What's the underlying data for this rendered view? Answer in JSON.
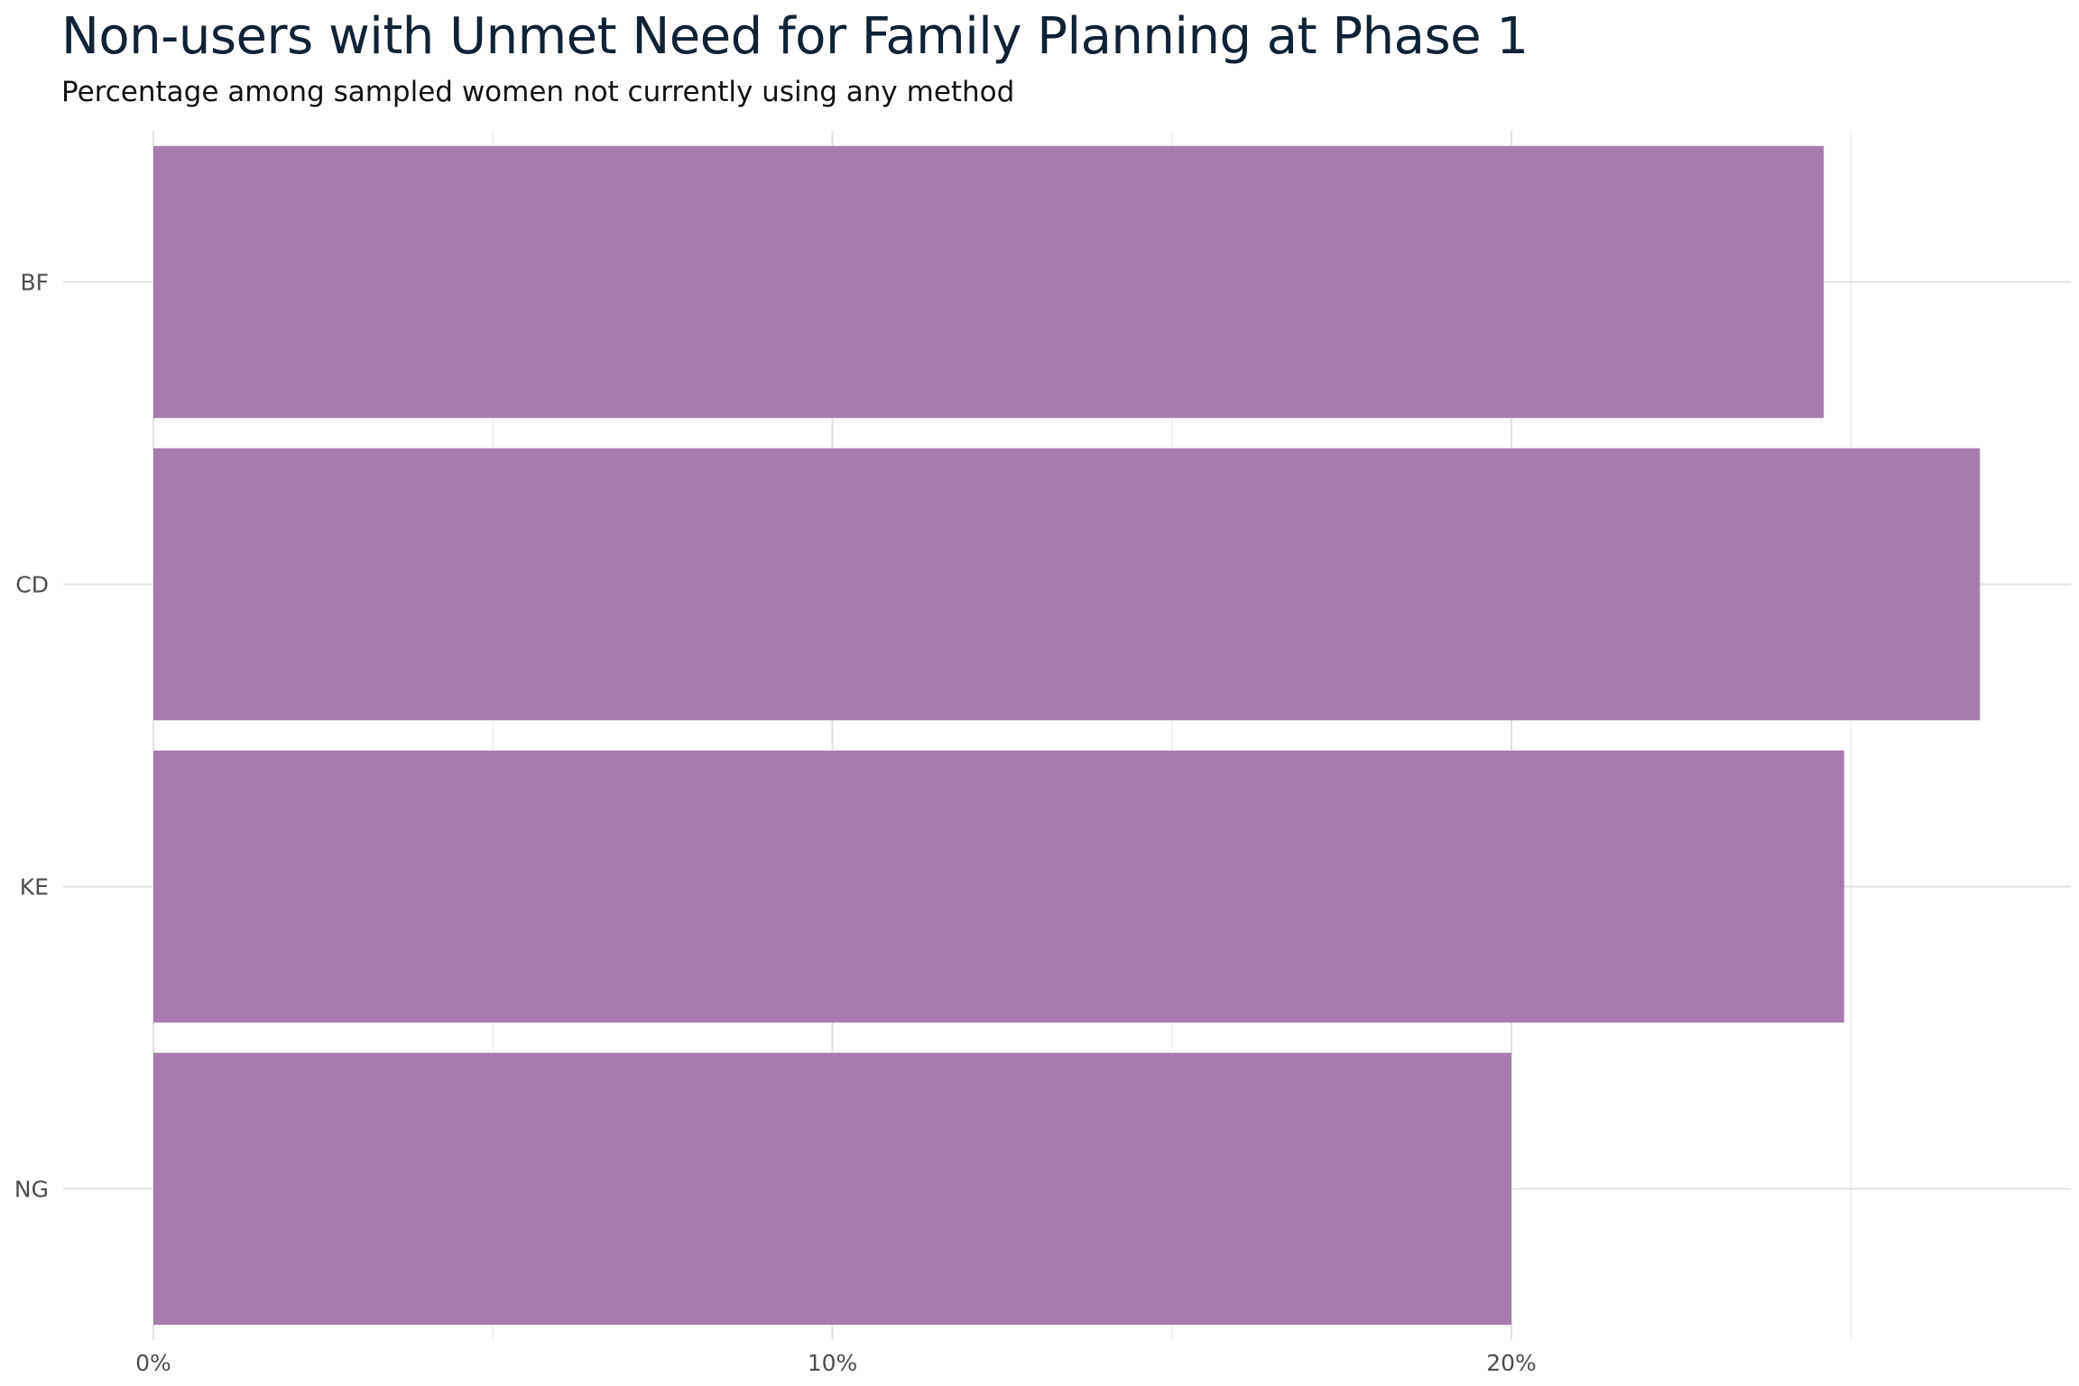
{
  "chart_data": {
    "type": "bar",
    "orientation": "horizontal",
    "title": "Non-users with Unmet Need for Family Planning at Phase 1",
    "subtitle": "Percentage among sampled women not currently using any method",
    "categories": [
      "BF",
      "CD",
      "KE",
      "NG"
    ],
    "values": [
      24.6,
      26.9,
      24.9,
      20.0
    ],
    "x_ticks": [
      "0%",
      "10%",
      "20%"
    ],
    "x_tick_values": [
      0,
      10,
      20
    ],
    "xlim": [
      0,
      28.3
    ],
    "grid": true,
    "bar_color": "#a77bad",
    "xlabel": "",
    "ylabel": ""
  }
}
